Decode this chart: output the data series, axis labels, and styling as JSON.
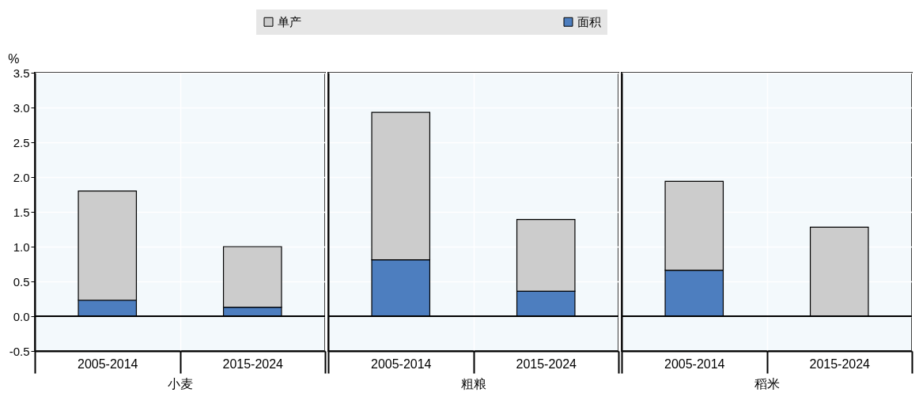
{
  "chart_data": [
    {
      "type": "bar",
      "stacked": true,
      "xlabel": "小麦",
      "ylabel": "%",
      "categories": [
        "2005-2014",
        "2015-2024"
      ],
      "ylim": [
        -0.5,
        3.5
      ],
      "yticks": [
        -0.5,
        {
          "value": 0,
          "label": "0.0"
        },
        0.5,
        {
          "value": 1,
          "label": "1.0"
        },
        1.5,
        {
          "value": 2,
          "label": "2.0"
        },
        2.5,
        {
          "value": 3,
          "label": "3.0"
        },
        3.5
      ],
      "grid": true,
      "legend": "top",
      "ref_lines": [
        {
          "axis": "y",
          "value": 0
        }
      ],
      "series": [
        {
          "name": "面积",
          "color": "#4d7ebf",
          "values": [
            0.23,
            0.13
          ]
        },
        {
          "name": "单产",
          "color": "#cccccc",
          "values": [
            1.57,
            0.87
          ]
        }
      ]
    },
    {
      "type": "bar",
      "stacked": true,
      "xlabel": "粗粮",
      "categories": [
        "2005-2014",
        "2015-2024"
      ],
      "ylim": [
        -0.5,
        3.5
      ],
      "yticks": [
        -0.5,
        0.0,
        0.5,
        1.0,
        1.5,
        2.0,
        2.5,
        3.0,
        3.5
      ],
      "grid": true,
      "tick_labels": "x",
      "legend": "top",
      "ref_lines": [
        {
          "axis": "y",
          "value": 0
        }
      ],
      "series": [
        {
          "name": "面积",
          "color": "#4d7ebf",
          "values": [
            0.81,
            0.36
          ]
        },
        {
          "name": "单产",
          "color": "#cccccc",
          "values": [
            2.12,
            1.03
          ]
        }
      ]
    },
    {
      "type": "bar",
      "stacked": true,
      "xlabel": "稻米",
      "categories": [
        "2005-2014",
        "2015-2024"
      ],
      "ylim": [
        -0.5,
        3.5
      ],
      "yticks": [
        -0.5,
        0.0,
        0.5,
        1.0,
        1.5,
        2.0,
        2.5,
        3.0,
        3.5
      ],
      "grid": true,
      "tick_labels": "x",
      "legend": "top",
      "ref_lines": [
        {
          "axis": "y",
          "value": 0
        }
      ],
      "series": [
        {
          "name": "面积",
          "color": "#4d7ebf",
          "values": [
            0.66,
            null
          ]
        },
        {
          "name": "单产",
          "color": "#cccccc",
          "values": [
            1.28,
            1.28
          ]
        }
      ]
    }
  ]
}
